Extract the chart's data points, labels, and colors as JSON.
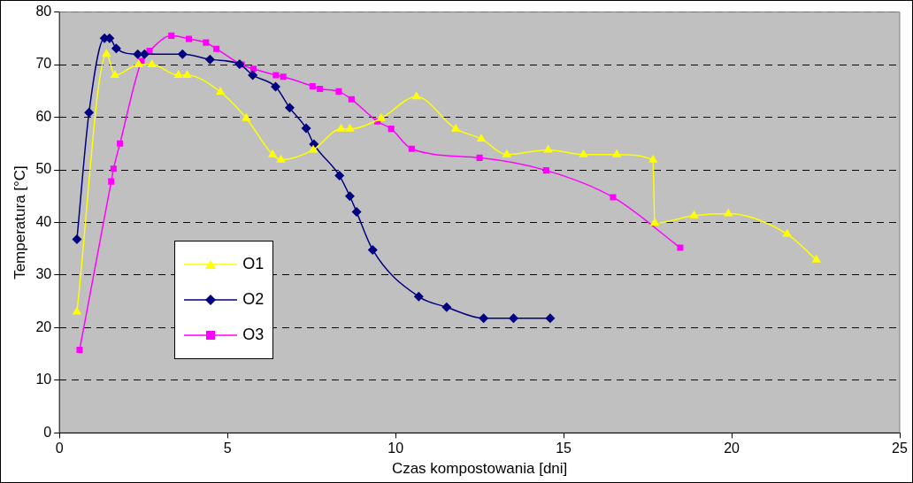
{
  "chart_data": {
    "type": "line",
    "xlabel": "Czas kompostowania [dni]",
    "ylabel": "Temperatura [°C]",
    "xlim": [
      0,
      25
    ],
    "xticks": [
      0,
      5,
      10,
      15,
      20,
      25
    ],
    "ylim": [
      0,
      80
    ],
    "yticks": [
      0,
      10,
      20,
      30,
      40,
      50,
      60,
      70,
      80
    ],
    "grid": "y",
    "legend": "left",
    "series": [
      {
        "name": "O1",
        "color": "#ffff00",
        "marker": "triangle",
        "x": [
          0.52,
          1.4,
          1.65,
          2.36,
          2.75,
          3.54,
          3.8,
          4.79,
          5.56,
          6.34,
          6.59,
          7.55,
          8.38,
          8.64,
          9.57,
          10.62,
          11.79,
          12.55,
          13.31,
          14.54,
          15.59,
          16.58,
          17.66,
          17.71,
          18.88,
          19.9,
          21.65,
          22.52
        ],
        "values": [
          23,
          72,
          68,
          70,
          70,
          68,
          68,
          64.8,
          59.8,
          52.9,
          51.9,
          53.8,
          57.8,
          57.8,
          59.8,
          63.9,
          57.8,
          55.9,
          52.9,
          53.8,
          52.9,
          52.9,
          51.9,
          39.9,
          41.3,
          41.7,
          37.8,
          32.9
        ]
      },
      {
        "name": "O2",
        "color": "#000080",
        "marker": "diamond",
        "x": [
          0.52,
          0.88,
          1.34,
          1.49,
          1.69,
          2.33,
          2.53,
          3.66,
          4.48,
          5.36,
          5.75,
          6.43,
          6.85,
          7.34,
          7.57,
          8.33,
          8.64,
          8.84,
          9.32,
          10.69,
          11.52,
          12.62,
          13.51,
          14.6
        ],
        "values": [
          36.8,
          60.9,
          75,
          75,
          73.1,
          72,
          72,
          72,
          71,
          70.1,
          68,
          65.8,
          61.8,
          57.9,
          54.9,
          48.9,
          45,
          42,
          34.8,
          25.9,
          23.9,
          21.8,
          21.8,
          21.8
        ]
      },
      {
        "name": "O3",
        "color": "#ff00ff",
        "marker": "square",
        "x": [
          0.6,
          1.54,
          1.61,
          1.8,
          2.44,
          2.68,
          3.33,
          3.85,
          4.36,
          4.67,
          5.42,
          5.77,
          6.44,
          6.66,
          7.53,
          7.75,
          8.31,
          8.69,
          9.46,
          9.87,
          10.48,
          12.5,
          14.48,
          16.47,
          18.47
        ],
        "values": [
          15.8,
          47.8,
          50.2,
          55,
          70.7,
          72.6,
          75.5,
          74.9,
          74.2,
          73,
          70,
          69.2,
          68,
          67.7,
          65.9,
          65.4,
          64.9,
          63.4,
          59.2,
          57.8,
          54,
          52.3,
          49.9,
          44.8,
          35.2
        ]
      }
    ]
  }
}
